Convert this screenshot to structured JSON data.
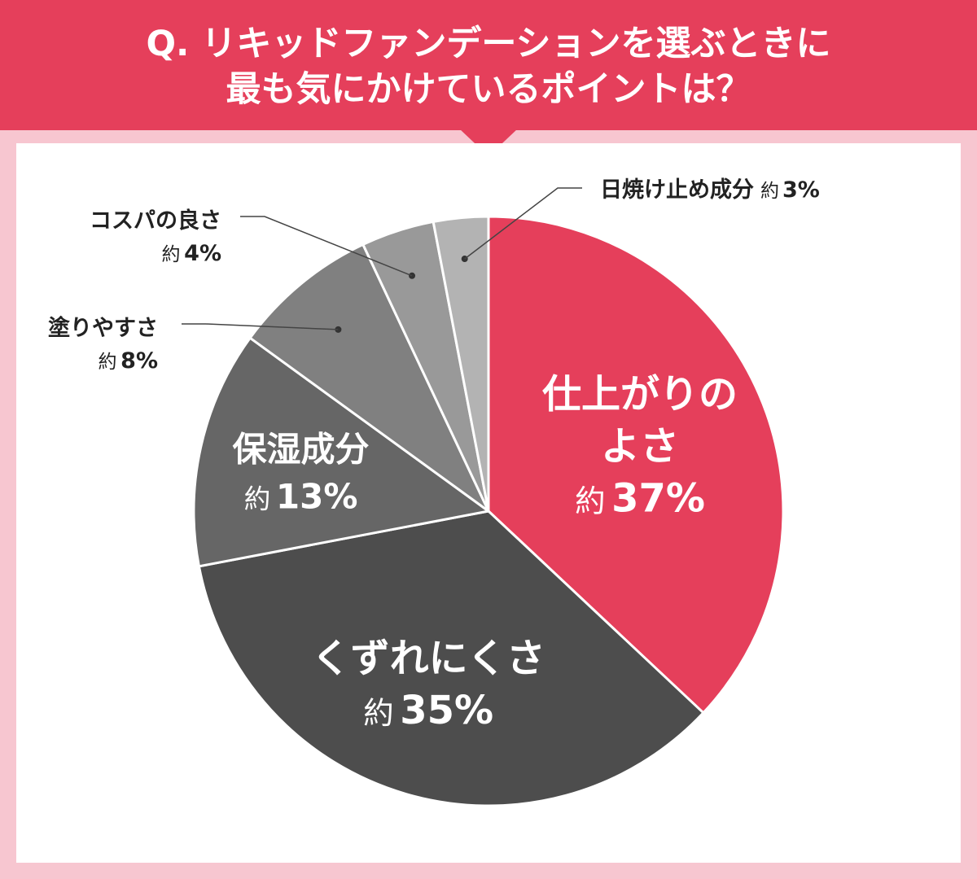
{
  "title_lines": [
    "Q. リキッドファンデーションを選ぶときに",
    "最も気にかけているポイントは？"
  ],
  "colors": {
    "accent": "#e53f5b",
    "background": "#f7c6d0",
    "panel": "#ffffff"
  },
  "chart_data": {
    "type": "pie",
    "title": "Q. リキッドファンデーションを選ぶときに 最も気にかけているポイントは？",
    "start": "12 o'clock",
    "direction": "clockwise",
    "slices": [
      {
        "name": "仕上がりのよさ",
        "label_lines": [
          "仕上がりの",
          "よさ"
        ],
        "prefix": "約",
        "value": 37,
        "value_text": "37%",
        "color": "#e53f5b",
        "label_placement": "inside"
      },
      {
        "name": "くずれにくさ",
        "label_lines": [
          "くずれにくさ"
        ],
        "prefix": "約",
        "value": 35,
        "value_text": "35%",
        "color": "#4d4d4d",
        "label_placement": "inside"
      },
      {
        "name": "保湿成分",
        "label_lines": [
          "保湿成分"
        ],
        "prefix": "約",
        "value": 13,
        "value_text": "13%",
        "color": "#666666",
        "label_placement": "inside"
      },
      {
        "name": "塗りやすさ",
        "label_lines": [
          "塗りやすさ"
        ],
        "prefix": "約",
        "value": 8,
        "value_text": "8%",
        "color": "#808080",
        "label_placement": "outside"
      },
      {
        "name": "コスパの良さ",
        "label_lines": [
          "コスパの良さ"
        ],
        "prefix": "約",
        "value": 4,
        "value_text": "4%",
        "color": "#999999",
        "label_placement": "outside"
      },
      {
        "name": "日焼け止め成分",
        "label_lines": [
          "日焼け止め成分"
        ],
        "prefix": "約",
        "value": 3,
        "value_text": "3%",
        "color": "#b3b3b3",
        "label_placement": "outside"
      }
    ]
  }
}
